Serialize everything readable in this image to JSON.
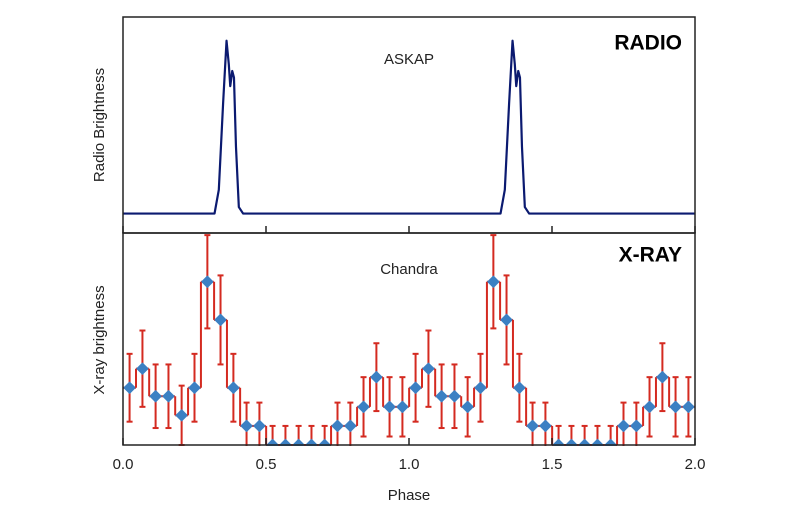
{
  "chart_data": [
    {
      "type": "line",
      "label": "RADIO",
      "annotation": "ASKAP",
      "ylabel": "Radio Brightness",
      "color": "#0b1a70",
      "xlim": [
        0,
        2
      ],
      "ylim": [
        0,
        1
      ],
      "x": [
        0,
        0.32,
        0.335,
        0.35,
        0.362,
        0.37,
        0.375,
        0.382,
        0.388,
        0.395,
        0.405,
        0.42,
        1.32,
        1.335,
        1.35,
        1.362,
        1.37,
        1.375,
        1.382,
        1.388,
        1.395,
        1.405,
        1.42,
        2
      ],
      "values": [
        0.09,
        0.09,
        0.2,
        0.6,
        0.89,
        0.78,
        0.68,
        0.75,
        0.72,
        0.4,
        0.12,
        0.09,
        0.09,
        0.2,
        0.6,
        0.89,
        0.78,
        0.68,
        0.75,
        0.72,
        0.4,
        0.12,
        0.09,
        0.09
      ]
    },
    {
      "type": "scatter",
      "label": "X-RAY",
      "annotation": "Chandra",
      "ylabel": "X-ray brightness",
      "xlabel": "Phase",
      "color": "#3b80c3",
      "errorbar_color": "#d42a20",
      "xlim": [
        0,
        2
      ],
      "ylim": [
        0,
        10
      ],
      "xticks": [
        {
          "value": 0,
          "label": "0.0"
        },
        0.5,
        {
          "value": 1,
          "label": "1.0"
        },
        1.5,
        {
          "value": 2,
          "label": "2.0"
        }
      ],
      "x": [
        0.023,
        0.068,
        0.114,
        0.159,
        0.205,
        0.25,
        0.295,
        0.341,
        0.386,
        0.432,
        0.477,
        0.523,
        0.568,
        0.614,
        0.659,
        0.705,
        0.75,
        0.795,
        0.841,
        0.886,
        0.932,
        0.977,
        1.023,
        1.068,
        1.114,
        1.159,
        1.205,
        1.25,
        1.295,
        1.341,
        1.386,
        1.432,
        1.477,
        1.523,
        1.568,
        1.614,
        1.659,
        1.705,
        1.75,
        1.795,
        1.841,
        1.886,
        1.932,
        1.977
      ],
      "values": [
        2.7,
        3.6,
        2.3,
        2.3,
        1.4,
        2.7,
        7.7,
        5.9,
        2.7,
        0.9,
        0.9,
        0,
        0,
        0,
        0,
        0,
        0.9,
        0.9,
        1.8,
        3.2,
        1.8,
        1.8,
        2.7,
        3.6,
        2.3,
        2.3,
        1.8,
        2.7,
        7.7,
        5.9,
        2.7,
        0.9,
        0.9,
        0,
        0,
        0,
        0,
        0,
        0.9,
        0.9,
        1.8,
        3.2,
        1.8,
        1.8
      ],
      "errors": [
        1.6,
        1.8,
        1.5,
        1.5,
        1.4,
        1.6,
        2.2,
        2.1,
        1.6,
        1.1,
        1.1,
        0.9,
        0.9,
        0.9,
        0.9,
        0.9,
        1.1,
        1.1,
        1.4,
        1.6,
        1.4,
        1.4,
        1.6,
        1.8,
        1.5,
        1.5,
        1.4,
        1.6,
        2.2,
        2.1,
        1.6,
        1.1,
        1.1,
        0.9,
        0.9,
        0.9,
        0.9,
        0.9,
        1.1,
        1.1,
        1.4,
        1.6,
        1.4,
        1.4
      ]
    }
  ]
}
